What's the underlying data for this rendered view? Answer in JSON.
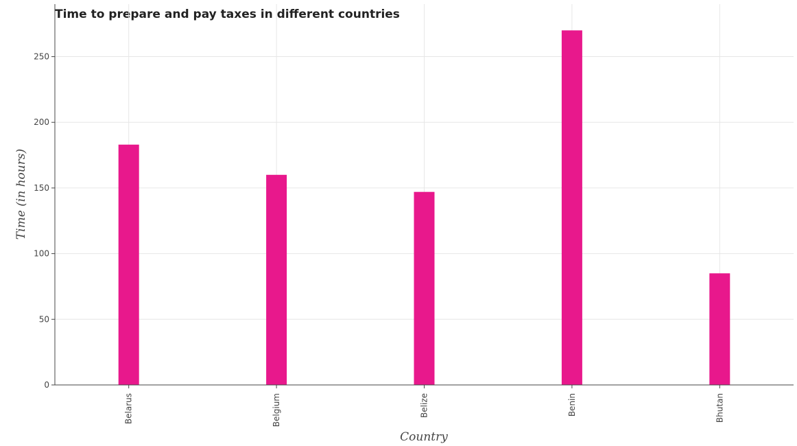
{
  "chart_data": {
    "type": "bar",
    "title": "Time to prepare and pay taxes in different countries",
    "xlabel": "Country",
    "ylabel": "Time (in hours)",
    "categories": [
      "Belarus",
      "Belgium",
      "Belize",
      "Benin",
      "Bhutan"
    ],
    "values": [
      183,
      160,
      147,
      270,
      85
    ],
    "ylim": [
      0,
      290
    ],
    "yticks": [
      0,
      50,
      100,
      150,
      200,
      250
    ],
    "grid": true,
    "bar_color": "#e8188c"
  }
}
